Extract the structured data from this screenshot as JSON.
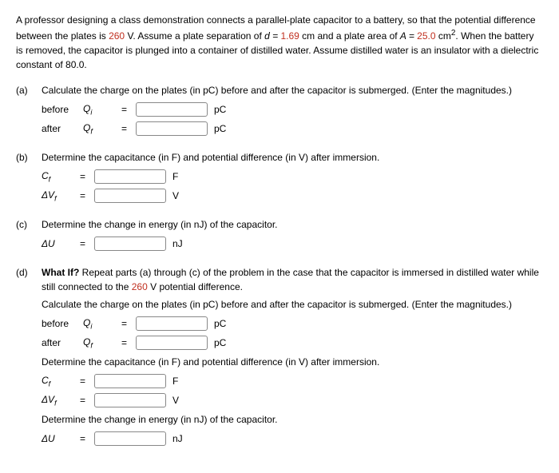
{
  "problem_statement": {
    "pre1": "A professor designing a class demonstration connects a parallel-plate capacitor to a battery, so that the potential difference between the plates is ",
    "v1": "260",
    "mid1": " V. Assume a plate separation of ",
    "d_eq": "d = ",
    "d_val": "1.69",
    "mid2": " cm and a plate area of ",
    "a_eq": "A = ",
    "a_val": "25.0",
    "a_unit_pre": " cm",
    "a_unit_sup": "2",
    "mid3": ". When the battery is removed, the capacitor is plunged into a container of distilled water. Assume distilled water is an insulator with a dielectric constant of 80.0."
  },
  "parts": {
    "a": {
      "label": "(a)",
      "text": "Calculate the charge on the plates (in pC) before and after the capacitor is submerged. (Enter the magnitudes.)",
      "rows": [
        {
          "sublabel": "before",
          "sym": "Q",
          "sub": "i",
          "unit": "pC"
        },
        {
          "sublabel": "after",
          "sym": "Q",
          "sub": "f",
          "unit": "pC"
        }
      ]
    },
    "b": {
      "label": "(b)",
      "text": "Determine the capacitance (in F) and potential difference (in V) after immersion.",
      "rows": [
        {
          "sym": "C",
          "sub": "f",
          "unit": "F"
        },
        {
          "sym": "ΔV",
          "sub": "f",
          "unit": "V"
        }
      ]
    },
    "c": {
      "label": "(c)",
      "text": "Determine the change in energy (in nJ) of the capacitor.",
      "rows": [
        {
          "sym": "ΔU",
          "sub": "",
          "unit": "nJ"
        }
      ]
    },
    "d": {
      "label": "(d)",
      "lead_bold": "What If?",
      "lead_rest": " Repeat parts (a) through (c) of the problem in the case that the capacitor is immersed in distilled water while still connected to the ",
      "lead_val": "260",
      "lead_after": " V potential difference.",
      "sec1": "Calculate the charge on the plates (in pC) before and after the capacitor is submerged. (Enter the magnitudes.)",
      "rows1": [
        {
          "sublabel": "before",
          "sym": "Q",
          "sub": "i",
          "unit": "pC"
        },
        {
          "sublabel": "after",
          "sym": "Q",
          "sub": "f",
          "unit": "pC"
        }
      ],
      "sec2": "Determine the capacitance (in F) and potential difference (in V) after immersion.",
      "rows2": [
        {
          "sym": "C",
          "sub": "f",
          "unit": "F"
        },
        {
          "sym": "ΔV",
          "sub": "f",
          "unit": "V"
        }
      ],
      "sec3": "Determine the change in energy (in nJ) of the capacitor.",
      "rows3": [
        {
          "sym": "ΔU",
          "sub": "",
          "unit": "nJ"
        }
      ]
    }
  },
  "eq_sign": "="
}
